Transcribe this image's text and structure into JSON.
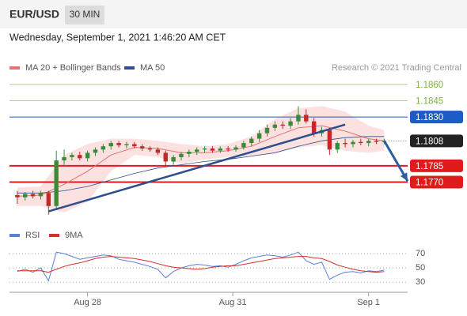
{
  "header": {
    "symbol": "EUR/USD",
    "interval": "30 MIN",
    "date": "Wednesday, September 1, 2021 1:46:20 AM CET"
  },
  "chart_data": [
    {
      "type": "candlestick",
      "credit": "Research © 2021 Trading Central",
      "xlim": [
        -1,
        50
      ],
      "ylim": [
        1.1734,
        1.1865
      ],
      "up_color": "#3a8a3a",
      "down_color": "#c62828",
      "x": [
        0,
        1,
        2,
        3,
        4,
        5,
        6,
        7,
        8,
        9,
        10,
        11,
        12,
        13,
        14,
        15,
        16,
        17,
        18,
        19,
        20,
        21,
        22,
        23,
        24,
        25,
        26,
        27,
        28,
        29,
        30,
        31,
        32,
        33,
        34,
        35,
        36,
        37,
        38,
        39,
        40,
        41,
        42,
        43,
        44,
        45,
        46,
        47
      ],
      "open": [
        1.1758,
        1.1756,
        1.1759,
        1.1757,
        1.176,
        1.1748,
        1.179,
        1.1793,
        1.1795,
        1.1792,
        1.1797,
        1.18,
        1.1803,
        1.1806,
        1.1804,
        1.1805,
        1.1803,
        1.1801,
        1.18,
        1.1797,
        1.1789,
        1.1793,
        1.1796,
        1.1798,
        1.18,
        1.1801,
        1.1799,
        1.1801,
        1.18,
        1.1802,
        1.1806,
        1.181,
        1.1815,
        1.182,
        1.1823,
        1.1822,
        1.1826,
        1.1832,
        1.1826,
        1.1815,
        1.1818,
        1.18,
        1.1806,
        1.1805,
        1.1807,
        1.1806,
        1.1808,
        1.1807
      ],
      "high": [
        1.1762,
        1.1761,
        1.1762,
        1.1762,
        1.1762,
        1.1799,
        1.18,
        1.1797,
        1.1798,
        1.1799,
        1.1802,
        1.1805,
        1.1808,
        1.1808,
        1.1807,
        1.1807,
        1.1805,
        1.1803,
        1.1802,
        1.1799,
        1.1795,
        1.1798,
        1.18,
        1.1802,
        1.1803,
        1.1803,
        1.1803,
        1.1803,
        1.1804,
        1.1808,
        1.1812,
        1.1818,
        1.1823,
        1.1826,
        1.1826,
        1.1829,
        1.184,
        1.1837,
        1.1829,
        1.1821,
        1.182,
        1.1808,
        1.181,
        1.1809,
        1.181,
        1.181,
        1.181,
        1.181
      ],
      "low": [
        1.175,
        1.1753,
        1.1755,
        1.1754,
        1.174,
        1.1745,
        1.1786,
        1.179,
        1.179,
        1.1789,
        1.1794,
        1.1797,
        1.18,
        1.1802,
        1.1801,
        1.1801,
        1.1799,
        1.1798,
        1.1795,
        1.1785,
        1.1786,
        1.179,
        1.1793,
        1.1795,
        1.1797,
        1.1797,
        1.1797,
        1.1798,
        1.1798,
        1.18,
        1.1803,
        1.1807,
        1.1812,
        1.1817,
        1.1819,
        1.1819,
        1.1823,
        1.1824,
        1.1812,
        1.1812,
        1.1795,
        1.1797,
        1.1802,
        1.1802,
        1.1804,
        1.1803,
        1.1805,
        1.1805
      ],
      "close": [
        1.1756,
        1.1759,
        1.1757,
        1.176,
        1.1748,
        1.179,
        1.1793,
        1.1795,
        1.1792,
        1.1797,
        1.18,
        1.1803,
        1.1806,
        1.1804,
        1.1805,
        1.1803,
        1.1801,
        1.18,
        1.1797,
        1.1789,
        1.1793,
        1.1796,
        1.1798,
        1.18,
        1.1801,
        1.1799,
        1.1801,
        1.18,
        1.1802,
        1.1806,
        1.181,
        1.1815,
        1.182,
        1.1823,
        1.1822,
        1.1826,
        1.1832,
        1.1826,
        1.1815,
        1.1818,
        1.18,
        1.1806,
        1.1805,
        1.1807,
        1.1806,
        1.1808,
        1.1807,
        1.1808
      ],
      "series": [
        {
          "name": "MA 20 + Bollinger Bands",
          "color": "#e57373",
          "band_color": "#fbdada",
          "x": [
            0,
            3,
            6,
            9,
            12,
            15,
            18,
            21,
            24,
            27,
            30,
            33,
            36,
            39,
            42,
            45,
            47
          ],
          "values": [
            1.1757,
            1.1758,
            1.1768,
            1.178,
            1.1795,
            1.1802,
            1.1801,
            1.1797,
            1.1797,
            1.1799,
            1.1803,
            1.1812,
            1.182,
            1.1822,
            1.1817,
            1.181,
            1.1808
          ],
          "upper": [
            1.1765,
            1.1766,
            1.1795,
            1.1805,
            1.181,
            1.181,
            1.1808,
            1.1805,
            1.1803,
            1.1805,
            1.1812,
            1.1828,
            1.1838,
            1.184,
            1.1835,
            1.1822,
            1.1818
          ],
          "lower": [
            1.1748,
            1.1748,
            1.1742,
            1.1752,
            1.178,
            1.1795,
            1.1793,
            1.1787,
            1.1791,
            1.1793,
            1.1794,
            1.1796,
            1.1802,
            1.1804,
            1.1799,
            1.1797,
            1.1799
          ]
        },
        {
          "name": "MA 50",
          "color": "#2d4f8c",
          "x": [
            0,
            3,
            6,
            9,
            12,
            15,
            18,
            21,
            24,
            27,
            30,
            33,
            36,
            39,
            42,
            45,
            47
          ],
          "values": [
            1.176,
            1.176,
            1.1762,
            1.1766,
            1.1772,
            1.1778,
            1.1783,
            1.1786,
            1.1789,
            1.1791,
            1.1794,
            1.1797,
            1.1803,
            1.1808,
            1.1811,
            1.1812,
            1.1812
          ]
        }
      ],
      "trendline": {
        "x": [
          4,
          42
        ],
        "values": [
          1.1743,
          1.1823
        ],
        "color": "#2d4f8c"
      },
      "forecast": {
        "x": [
          47,
          50
        ],
        "values": [
          1.1808,
          1.1771
        ],
        "color": "#2d5f9e"
      },
      "levels": [
        {
          "value": 1.186,
          "label": "1.1860",
          "color": "#7cb342",
          "boxed": false
        },
        {
          "value": 1.1845,
          "label": "1.1845",
          "color": "#7cb342",
          "boxed": false
        },
        {
          "value": 1.183,
          "label": "1.1830",
          "color": "#1e5bc6",
          "boxed": true
        },
        {
          "value": 1.1808,
          "label": "1.1808",
          "color": "#222222",
          "boxed": true,
          "dotted": true
        },
        {
          "value": 1.1785,
          "label": "1.1785",
          "color": "#e01b1b",
          "boxed": true
        },
        {
          "value": 1.177,
          "label": "1.1770",
          "color": "#e01b1b",
          "boxed": true
        }
      ]
    },
    {
      "type": "line",
      "xlim": [
        -1,
        50
      ],
      "ylim": [
        16,
        92
      ],
      "yticks": [
        30,
        50,
        70
      ],
      "xticks": [
        {
          "value": 9,
          "label": "Aug 28"
        },
        {
          "value": 27.6,
          "label": "Aug 31"
        },
        {
          "value": 45,
          "label": "Sep 1"
        }
      ],
      "x": [
        0,
        1,
        2,
        3,
        4,
        5,
        6,
        7,
        8,
        9,
        10,
        11,
        12,
        13,
        14,
        15,
        16,
        17,
        18,
        19,
        20,
        21,
        22,
        23,
        24,
        25,
        26,
        27,
        28,
        29,
        30,
        31,
        32,
        33,
        34,
        35,
        36,
        37,
        38,
        39,
        40,
        41,
        42,
        43,
        44,
        45,
        46,
        47
      ],
      "series": [
        {
          "name": "RSI",
          "color": "#5b7fd6",
          "values": [
            45,
            48,
            44,
            50,
            32,
            72,
            70,
            66,
            62,
            64,
            66,
            68,
            67,
            62,
            60,
            58,
            55,
            52,
            48,
            36,
            45,
            50,
            53,
            55,
            54,
            52,
            53,
            51,
            55,
            60,
            64,
            66,
            68,
            67,
            65,
            68,
            72,
            60,
            55,
            58,
            34,
            40,
            44,
            45,
            43,
            46,
            45,
            47
          ]
        },
        {
          "name": "9MA",
          "color": "#d32f2f",
          "values": [
            46,
            46,
            46,
            46,
            44,
            48,
            52,
            55,
            57,
            60,
            63,
            65,
            66,
            65,
            64,
            63,
            61,
            59,
            56,
            53,
            51,
            50,
            49,
            48,
            49,
            51,
            52,
            53,
            53,
            55,
            57,
            59,
            61,
            63,
            64,
            65,
            66,
            66,
            64,
            63,
            59,
            54,
            51,
            48,
            46,
            45,
            44,
            45
          ]
        }
      ]
    }
  ]
}
